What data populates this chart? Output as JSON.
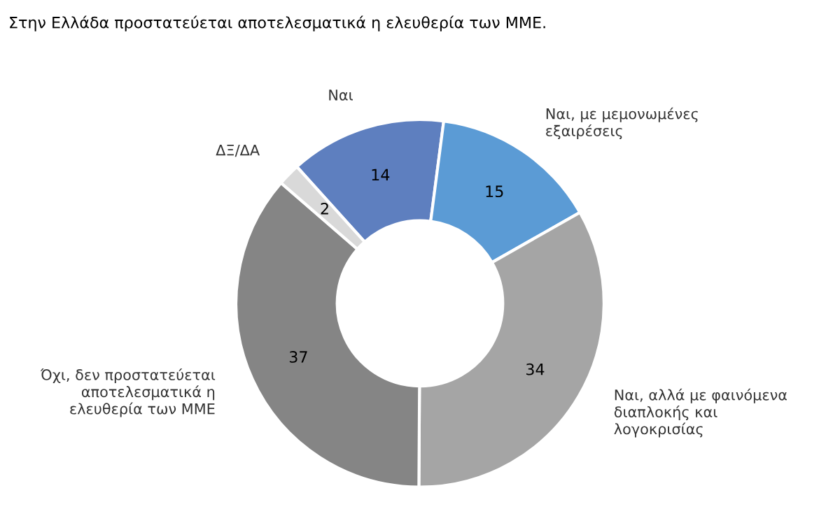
{
  "chart_data": {
    "type": "donut",
    "title": "Στην Ελλάδα προστατεύεται αποτελεσματικά η ελευθερία των ΜΜΕ.",
    "categories": [
      "Ναι",
      "Ναι, με μεμονωμένες εξαιρέσεις",
      "Ναι, αλλά με φαινόμενα διαπλοκής και λογοκρισίας",
      "Όχι, δεν προστατεύεται αποτελεσματικά η ελευθερία των ΜΜΕ",
      "ΔΞ/ΔΑ"
    ],
    "values": [
      14,
      15,
      34,
      37,
      2
    ],
    "colors": [
      "#5e7fbf",
      "#5b9bd5",
      "#a5a5a5",
      "#858585",
      "#d9d9d9"
    ],
    "data_labels": true,
    "legend": false
  }
}
